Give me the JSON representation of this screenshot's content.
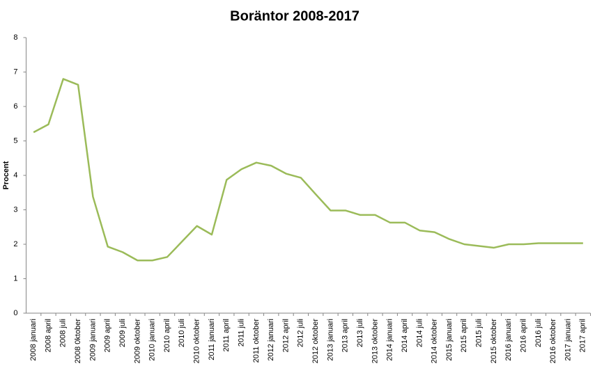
{
  "chart_data": {
    "type": "line",
    "title": "Boräntor 2008-2017",
    "y_label": "Procent",
    "categories": [
      "2008 januari",
      "2008 april",
      "2008 juli",
      "2008 0ktober",
      "2009 januari",
      "2009 april",
      "2009 juli",
      "2009 oktober",
      "2010 januari",
      "2010 april",
      "2010 juli",
      "2010 oktober",
      "2011 januari",
      "2011 april",
      "2011 juli",
      "2011 oktober",
      "2012 januari",
      "2012 april",
      "2012 juli",
      "2012 oktober",
      "2013 januari",
      "2013 april",
      "2013 juli",
      "2013 oktober",
      "2014 januari",
      "2014 april",
      "2014 juli",
      "2014 oktober",
      "2015 januari",
      "2015 april",
      "2015 juli",
      "2015 oktober",
      "2016 januari",
      "2016 april",
      "2016 juli",
      "2016 oktober",
      "2017 januari",
      "2017 april"
    ],
    "values": [
      5.25,
      5.48,
      6.8,
      6.63,
      3.38,
      1.93,
      1.77,
      1.53,
      1.53,
      1.63,
      2.08,
      2.53,
      2.28,
      3.87,
      4.18,
      4.37,
      4.28,
      4.05,
      3.93,
      3.45,
      2.98,
      2.98,
      2.85,
      2.85,
      2.63,
      2.63,
      2.4,
      2.35,
      2.15,
      2.0,
      1.95,
      1.9,
      2.0,
      2.0,
      2.03,
      2.03,
      2.03,
      2.03
    ],
    "color": "#9bbb59",
    "ylim": [
      0,
      8
    ],
    "yticks": [
      0,
      1,
      2,
      3,
      4,
      5,
      6,
      7,
      8
    ],
    "grid": false
  }
}
